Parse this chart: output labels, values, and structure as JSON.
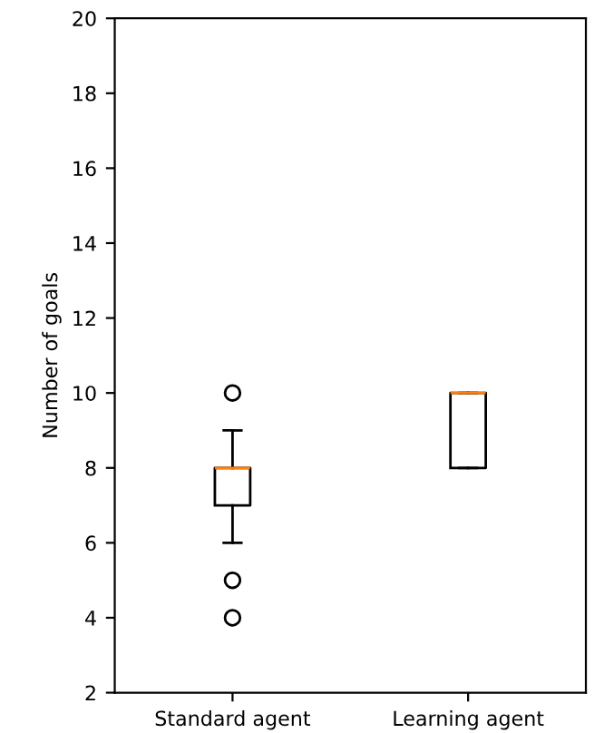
{
  "chart_data": {
    "type": "box",
    "ylabel": "Number of goals",
    "categories": [
      "Standard agent",
      "Learning agent"
    ],
    "boxes": [
      {
        "low": 6,
        "q1": 7,
        "median": 8,
        "q3": 8,
        "high": 9,
        "outliers": [
          10,
          5,
          4
        ]
      },
      {
        "low": 8,
        "q1": 8,
        "median": 10,
        "q3": 10,
        "high": 10
      }
    ],
    "ylim": [
      2,
      20
    ],
    "yticks": [
      2,
      4,
      6,
      8,
      10,
      12,
      14,
      16,
      18,
      20
    ],
    "grid": false
  }
}
